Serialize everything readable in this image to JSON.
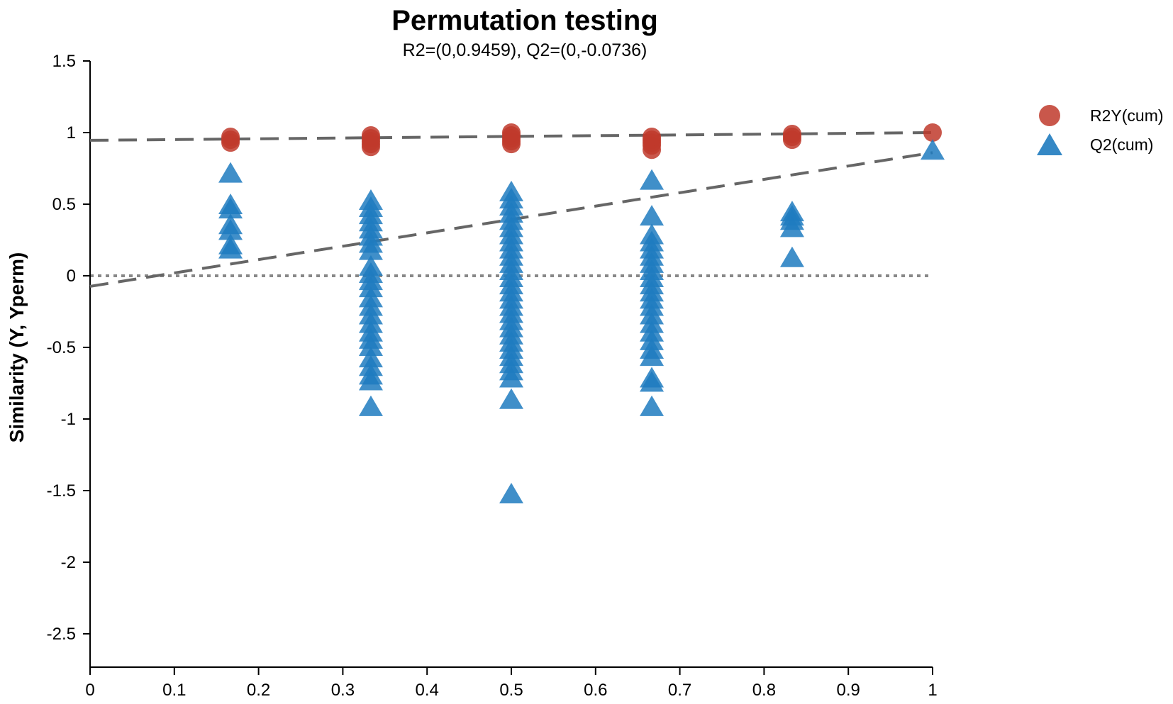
{
  "chart_data": {
    "type": "scatter",
    "title": "Permutation testing",
    "subtitle": "R2=(0,0.9459), Q2=(0,-0.0736)",
    "xlabel": "",
    "ylabel": "Similarity (Y, Yperm)",
    "xlim": [
      0,
      1
    ],
    "ylim": [
      -2.75,
      1.5
    ],
    "xticks": [
      0,
      0.1,
      0.2,
      0.3,
      0.4,
      0.5,
      0.6,
      0.7,
      0.8,
      0.9,
      1
    ],
    "xtick_labels": [
      "0",
      "0.1",
      "0.2",
      "0.3",
      "0.4",
      "0.5",
      "0.6",
      "0.7",
      "0.8",
      "0.9",
      "1"
    ],
    "yticks": [
      1.5,
      1,
      0.5,
      0,
      -0.5,
      -1,
      -1.5,
      -2,
      -2.5
    ],
    "ytick_labels": [
      "1.5",
      "1",
      "0.5",
      "0",
      "-0.5",
      "-1",
      "-1.5",
      "-2",
      "-2.5"
    ],
    "legend_position": "top-right",
    "colors": {
      "r2": "#c0392b",
      "q2": "#1f7bbf",
      "trend": "#666666",
      "zero_line": "#888888",
      "axis": "#000000"
    },
    "series": [
      {
        "name": "R2Y(cum)",
        "marker": "circle",
        "points": [
          {
            "x": 0.1667,
            "y": 0.93
          },
          {
            "x": 0.1667,
            "y": 0.95
          },
          {
            "x": 0.1667,
            "y": 0.97
          },
          {
            "x": 0.3333,
            "y": 0.9
          },
          {
            "x": 0.3333,
            "y": 0.92
          },
          {
            "x": 0.3333,
            "y": 0.94
          },
          {
            "x": 0.3333,
            "y": 0.96
          },
          {
            "x": 0.3333,
            "y": 0.98
          },
          {
            "x": 0.5,
            "y": 0.92
          },
          {
            "x": 0.5,
            "y": 0.94
          },
          {
            "x": 0.5,
            "y": 0.96
          },
          {
            "x": 0.5,
            "y": 0.98
          },
          {
            "x": 0.5,
            "y": 1.0
          },
          {
            "x": 0.6667,
            "y": 0.88
          },
          {
            "x": 0.6667,
            "y": 0.91
          },
          {
            "x": 0.6667,
            "y": 0.93
          },
          {
            "x": 0.6667,
            "y": 0.95
          },
          {
            "x": 0.6667,
            "y": 0.97
          },
          {
            "x": 0.8333,
            "y": 0.95
          },
          {
            "x": 0.8333,
            "y": 0.97
          },
          {
            "x": 0.8333,
            "y": 0.99
          },
          {
            "x": 1.0,
            "y": 1.0
          }
        ]
      },
      {
        "name": "Q2(cum)",
        "marker": "triangle",
        "points": [
          {
            "x": 0.1667,
            "y": 0.71
          },
          {
            "x": 0.1667,
            "y": 0.49
          },
          {
            "x": 0.1667,
            "y": 0.46
          },
          {
            "x": 0.1667,
            "y": 0.35
          },
          {
            "x": 0.1667,
            "y": 0.31
          },
          {
            "x": 0.1667,
            "y": 0.21
          },
          {
            "x": 0.1667,
            "y": 0.18
          },
          {
            "x": 0.3333,
            "y": 0.52
          },
          {
            "x": 0.3333,
            "y": 0.47
          },
          {
            "x": 0.3333,
            "y": 0.42
          },
          {
            "x": 0.3333,
            "y": 0.37
          },
          {
            "x": 0.3333,
            "y": 0.32
          },
          {
            "x": 0.3333,
            "y": 0.27
          },
          {
            "x": 0.3333,
            "y": 0.22
          },
          {
            "x": 0.3333,
            "y": 0.17
          },
          {
            "x": 0.3333,
            "y": 0.06
          },
          {
            "x": 0.3333,
            "y": 0.01
          },
          {
            "x": 0.3333,
            "y": -0.04
          },
          {
            "x": 0.3333,
            "y": -0.09
          },
          {
            "x": 0.3333,
            "y": -0.16
          },
          {
            "x": 0.3333,
            "y": -0.22
          },
          {
            "x": 0.3333,
            "y": -0.28
          },
          {
            "x": 0.3333,
            "y": -0.34
          },
          {
            "x": 0.3333,
            "y": -0.4
          },
          {
            "x": 0.3333,
            "y": -0.45
          },
          {
            "x": 0.3333,
            "y": -0.5
          },
          {
            "x": 0.3333,
            "y": -0.58
          },
          {
            "x": 0.3333,
            "y": -0.64
          },
          {
            "x": 0.3333,
            "y": -0.7
          },
          {
            "x": 0.3333,
            "y": -0.74
          },
          {
            "x": 0.3333,
            "y": -0.92
          },
          {
            "x": 0.5,
            "y": 0.58
          },
          {
            "x": 0.5,
            "y": 0.53
          },
          {
            "x": 0.5,
            "y": 0.48
          },
          {
            "x": 0.5,
            "y": 0.43
          },
          {
            "x": 0.5,
            "y": 0.38
          },
          {
            "x": 0.5,
            "y": 0.33
          },
          {
            "x": 0.5,
            "y": 0.28
          },
          {
            "x": 0.5,
            "y": 0.23
          },
          {
            "x": 0.5,
            "y": 0.18
          },
          {
            "x": 0.5,
            "y": 0.13
          },
          {
            "x": 0.5,
            "y": 0.08
          },
          {
            "x": 0.5,
            "y": 0.03
          },
          {
            "x": 0.5,
            "y": -0.02
          },
          {
            "x": 0.5,
            "y": -0.07
          },
          {
            "x": 0.5,
            "y": -0.12
          },
          {
            "x": 0.5,
            "y": -0.17
          },
          {
            "x": 0.5,
            "y": -0.22
          },
          {
            "x": 0.5,
            "y": -0.27
          },
          {
            "x": 0.5,
            "y": -0.32
          },
          {
            "x": 0.5,
            "y": -0.37
          },
          {
            "x": 0.5,
            "y": -0.42
          },
          {
            "x": 0.5,
            "y": -0.47
          },
          {
            "x": 0.5,
            "y": -0.52
          },
          {
            "x": 0.5,
            "y": -0.57
          },
          {
            "x": 0.5,
            "y": -0.62
          },
          {
            "x": 0.5,
            "y": -0.67
          },
          {
            "x": 0.5,
            "y": -0.72
          },
          {
            "x": 0.5,
            "y": -0.87
          },
          {
            "x": 0.5,
            "y": -1.53
          },
          {
            "x": 0.6667,
            "y": 0.66
          },
          {
            "x": 0.6667,
            "y": 0.41
          },
          {
            "x": 0.6667,
            "y": 0.28
          },
          {
            "x": 0.6667,
            "y": 0.23
          },
          {
            "x": 0.6667,
            "y": 0.18
          },
          {
            "x": 0.6667,
            "y": 0.13
          },
          {
            "x": 0.6667,
            "y": 0.08
          },
          {
            "x": 0.6667,
            "y": 0.03
          },
          {
            "x": 0.6667,
            "y": -0.02
          },
          {
            "x": 0.6667,
            "y": -0.07
          },
          {
            "x": 0.6667,
            "y": -0.12
          },
          {
            "x": 0.6667,
            "y": -0.17
          },
          {
            "x": 0.6667,
            "y": -0.22
          },
          {
            "x": 0.6667,
            "y": -0.28
          },
          {
            "x": 0.6667,
            "y": -0.34
          },
          {
            "x": 0.6667,
            "y": -0.4
          },
          {
            "x": 0.6667,
            "y": -0.46
          },
          {
            "x": 0.6667,
            "y": -0.52
          },
          {
            "x": 0.6667,
            "y": -0.57
          },
          {
            "x": 0.6667,
            "y": -0.72
          },
          {
            "x": 0.6667,
            "y": -0.75
          },
          {
            "x": 0.6667,
            "y": -0.92
          },
          {
            "x": 0.8333,
            "y": 0.44
          },
          {
            "x": 0.8333,
            "y": 0.41
          },
          {
            "x": 0.8333,
            "y": 0.38
          },
          {
            "x": 0.8333,
            "y": 0.33
          },
          {
            "x": 0.8333,
            "y": 0.12
          },
          {
            "x": 1.0,
            "y": 0.87
          }
        ]
      }
    ],
    "trend_lines": [
      {
        "name": "R2 trend",
        "from": [
          0,
          0.9459
        ],
        "to": [
          1,
          1.0
        ],
        "style": "dashed"
      },
      {
        "name": "Q2 trend",
        "from": [
          0,
          -0.0736
        ],
        "to": [
          1,
          0.86
        ],
        "style": "dashed"
      }
    ],
    "reference_lines": [
      {
        "name": "zero line",
        "y": 0,
        "x_range": [
          0,
          1
        ],
        "style": "dotted"
      }
    ]
  }
}
